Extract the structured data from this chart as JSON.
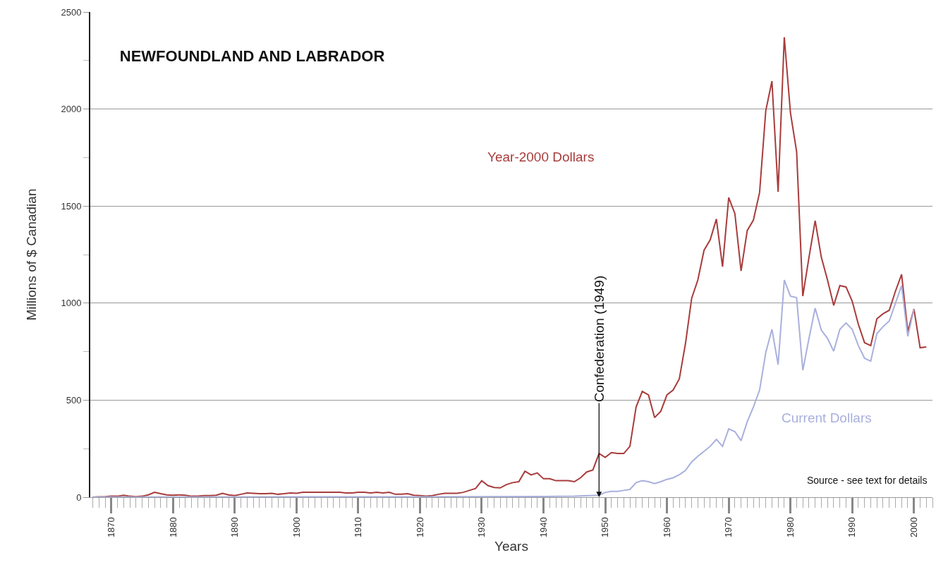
{
  "chart_data": {
    "type": "line",
    "title": "NEWFOUNDLAND AND LABRADOR",
    "xlabel": "Years",
    "ylabel": "Millions of $ Canadian",
    "xlim": [
      1866.6,
      2003
    ],
    "xticks": [
      1870,
      1880,
      1890,
      1900,
      1910,
      1920,
      1930,
      1940,
      1950,
      1960,
      1970,
      1980,
      1990,
      2000
    ],
    "ylim": [
      0,
      2500
    ],
    "yticks": [
      0,
      500,
      1000,
      1500,
      2000,
      2500
    ],
    "grid": "y",
    "legend": false,
    "marker": "none",
    "line_style": "solid",
    "annotations": [
      {
        "text": "Confederation (1949)",
        "x": 1949,
        "y": 0
      },
      "Source - see text for details"
    ],
    "series": [
      {
        "name": "Year-2000 Dollars",
        "color": "#a83c3c",
        "x": [
          1867,
          1868,
          1869,
          1870,
          1871,
          1872,
          1873,
          1874,
          1875,
          1876,
          1877,
          1878,
          1879,
          1880,
          1881,
          1882,
          1883,
          1884,
          1885,
          1886,
          1887,
          1888,
          1889,
          1890,
          1891,
          1892,
          1893,
          1894,
          1895,
          1896,
          1897,
          1898,
          1899,
          1900,
          1901,
          1902,
          1903,
          1904,
          1905,
          1906,
          1907,
          1908,
          1909,
          1910,
          1911,
          1912,
          1913,
          1914,
          1915,
          1916,
          1917,
          1918,
          1919,
          1920,
          1921,
          1922,
          1923,
          1924,
          1925,
          1926,
          1927,
          1928,
          1929,
          1930,
          1931,
          1932,
          1933,
          1934,
          1935,
          1936,
          1937,
          1938,
          1939,
          1940,
          1941,
          1942,
          1943,
          1944,
          1945,
          1946,
          1947,
          1948,
          1949,
          1950,
          1951,
          1952,
          1953,
          1954,
          1955,
          1956,
          1957,
          1958,
          1959,
          1960,
          1961,
          1962,
          1963,
          1964,
          1965,
          1966,
          1967,
          1968,
          1969,
          1970,
          1971,
          1972,
          1973,
          1974,
          1975,
          1976,
          1977,
          1978,
          1979,
          1980,
          1981,
          1982,
          1983,
          1984,
          1985,
          1986,
          1987,
          1988,
          1989,
          1990,
          1991,
          1992,
          1993,
          1994,
          1995,
          1996,
          1997,
          1998,
          1999,
          2000,
          2001,
          2002
        ],
        "values": [
          0,
          2,
          3,
          5,
          5,
          10,
          5,
          3,
          5,
          12,
          25,
          18,
          12,
          10,
          12,
          10,
          5,
          5,
          8,
          8,
          10,
          20,
          12,
          8,
          15,
          22,
          20,
          18,
          18,
          20,
          15,
          18,
          22,
          20,
          25,
          25,
          25,
          25,
          25,
          25,
          25,
          22,
          22,
          25,
          25,
          22,
          25,
          22,
          25,
          15,
          15,
          18,
          10,
          8,
          5,
          8,
          15,
          20,
          20,
          20,
          25,
          35,
          45,
          85,
          60,
          50,
          48,
          65,
          75,
          80,
          134,
          115,
          125,
          95,
          95,
          85,
          85,
          85,
          80,
          100,
          130,
          140,
          225,
          205,
          230,
          225,
          225,
          262,
          465,
          545,
          527,
          410,
          443,
          527,
          552,
          610,
          792,
          1025,
          1119,
          1272,
          1326,
          1433,
          1188,
          1544,
          1461,
          1166,
          1374,
          1428,
          1570,
          1991,
          2144,
          1574,
          2370,
          1980,
          1780,
          1036,
          1236,
          1425,
          1236,
          1119,
          988,
          1090,
          1083,
          1010,
          890,
          796,
          781,
          919,
          945,
          963,
          1061,
          1148,
          854,
          970,
          770,
          774
        ]
      },
      {
        "name": "Current Dollars",
        "color": "#a9b0dd",
        "x": [
          1867,
          1880,
          1900,
          1920,
          1930,
          1940,
          1945,
          1949,
          1950,
          1951,
          1952,
          1953,
          1954,
          1955,
          1956,
          1957,
          1958,
          1959,
          1960,
          1961,
          1962,
          1963,
          1964,
          1965,
          1966,
          1967,
          1968,
          1969,
          1970,
          1971,
          1972,
          1973,
          1974,
          1975,
          1976,
          1977,
          1978,
          1979,
          1980,
          1981,
          1982,
          1983,
          1984,
          1985,
          1986,
          1987,
          1988,
          1989,
          1990,
          1991,
          1992,
          1993,
          1994,
          1995,
          1996,
          1997,
          1998,
          1999,
          2000
        ],
        "values": [
          1,
          1,
          2,
          2,
          3,
          4,
          5,
          10,
          25,
          30,
          30,
          35,
          40,
          75,
          85,
          80,
          70,
          80,
          92,
          100,
          116,
          138,
          182,
          211,
          236,
          262,
          298,
          262,
          352,
          338,
          291,
          389,
          465,
          552,
          745,
          865,
          683,
          1119,
          1036,
          1028,
          654,
          818,
          974,
          861,
          818,
          752,
          865,
          898,
          865,
          781,
          716,
          701,
          843,
          879,
          908,
          999,
          1090,
          829,
          970
        ]
      }
    ]
  }
}
